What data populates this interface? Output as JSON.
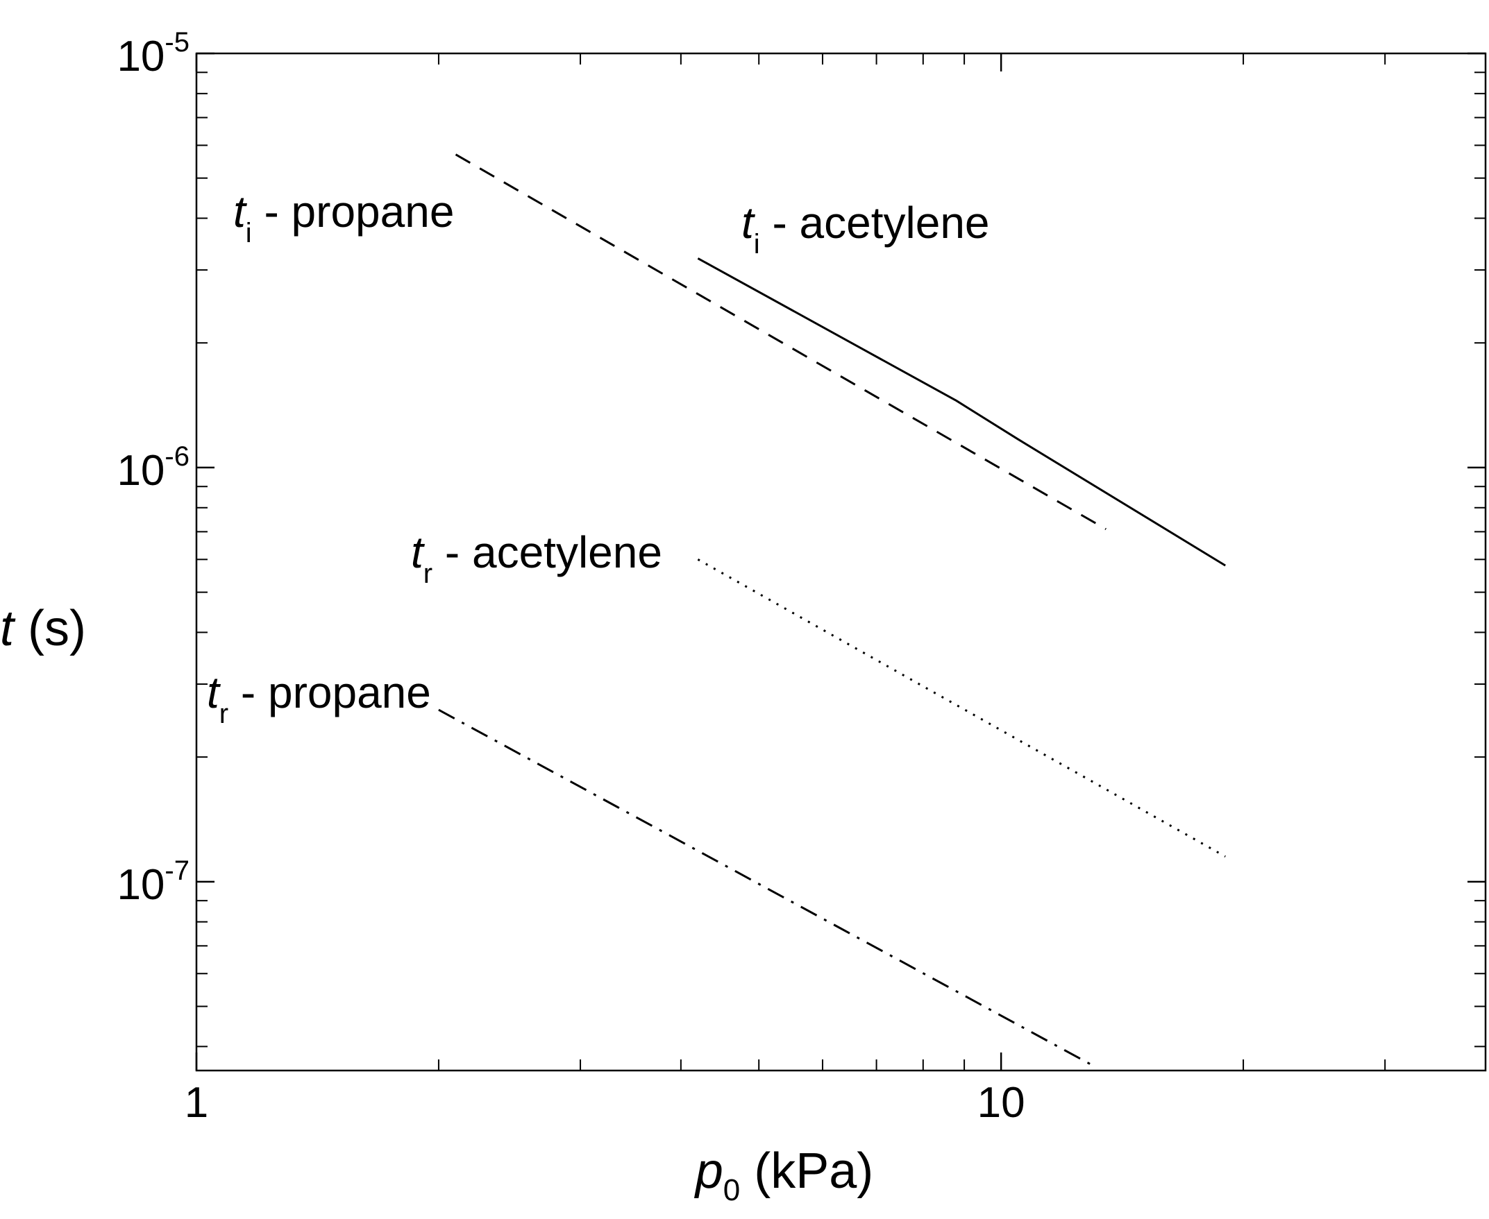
{
  "chart_data": {
    "type": "line",
    "title": "",
    "xscale": "log",
    "yscale": "log",
    "xlim": [
      1,
      40
    ],
    "ylim": [
      3.5e-08,
      1e-05
    ],
    "xlabel": {
      "var": "p",
      "sub": "0",
      "unit": " (kPa)"
    },
    "ylabel": {
      "var": "t",
      "unit": " (s)"
    },
    "x_ticks": [
      {
        "value": 1,
        "label": "1"
      },
      {
        "value": 10,
        "label": "10"
      }
    ],
    "y_ticks": [
      {
        "value": 1e-07,
        "base": "10",
        "exp": "-7"
      },
      {
        "value": 1e-06,
        "base": "10",
        "exp": "-6"
      },
      {
        "value": 1e-05,
        "base": "10",
        "exp": "-5"
      }
    ],
    "x_minor_ticks": [
      2,
      3,
      4,
      5,
      6,
      7,
      8,
      9,
      20,
      30
    ],
    "y_minor_ticks": [
      4e-08,
      5e-08,
      6e-08,
      7e-08,
      8e-08,
      9e-08,
      2e-07,
      3e-07,
      4e-07,
      5e-07,
      6e-07,
      7e-07,
      8e-07,
      9e-07,
      2e-06,
      3e-06,
      4e-06,
      5e-06,
      6e-06,
      7e-06,
      8e-06,
      9e-06
    ],
    "series": [
      {
        "name_var": "t",
        "name_sub": "i",
        "name_rest": " - propane",
        "style": "dashed",
        "x": [
          2.1,
          13.5
        ],
        "y": [
          5.7e-06,
          7.1e-07
        ]
      },
      {
        "name_var": "t",
        "name_sub": "i",
        "name_rest": " - acetylene",
        "style": "solid",
        "x": [
          4.2,
          8.8,
          10.5,
          19.0
        ],
        "y": [
          3.2e-06,
          1.45e-06,
          1.17e-06,
          5.8e-07
        ]
      },
      {
        "name_var": "t",
        "name_sub": "r",
        "name_rest": " - acetylene",
        "style": "dotted",
        "x": [
          4.2,
          19.0
        ],
        "y": [
          6e-07,
          1.15e-07
        ]
      },
      {
        "name_var": "t",
        "name_sub": "r",
        "name_rest": " - propane",
        "style": "dashdot",
        "x": [
          2.0,
          13.0
        ],
        "y": [
          2.6e-07,
          3.6e-08
        ]
      }
    ]
  }
}
